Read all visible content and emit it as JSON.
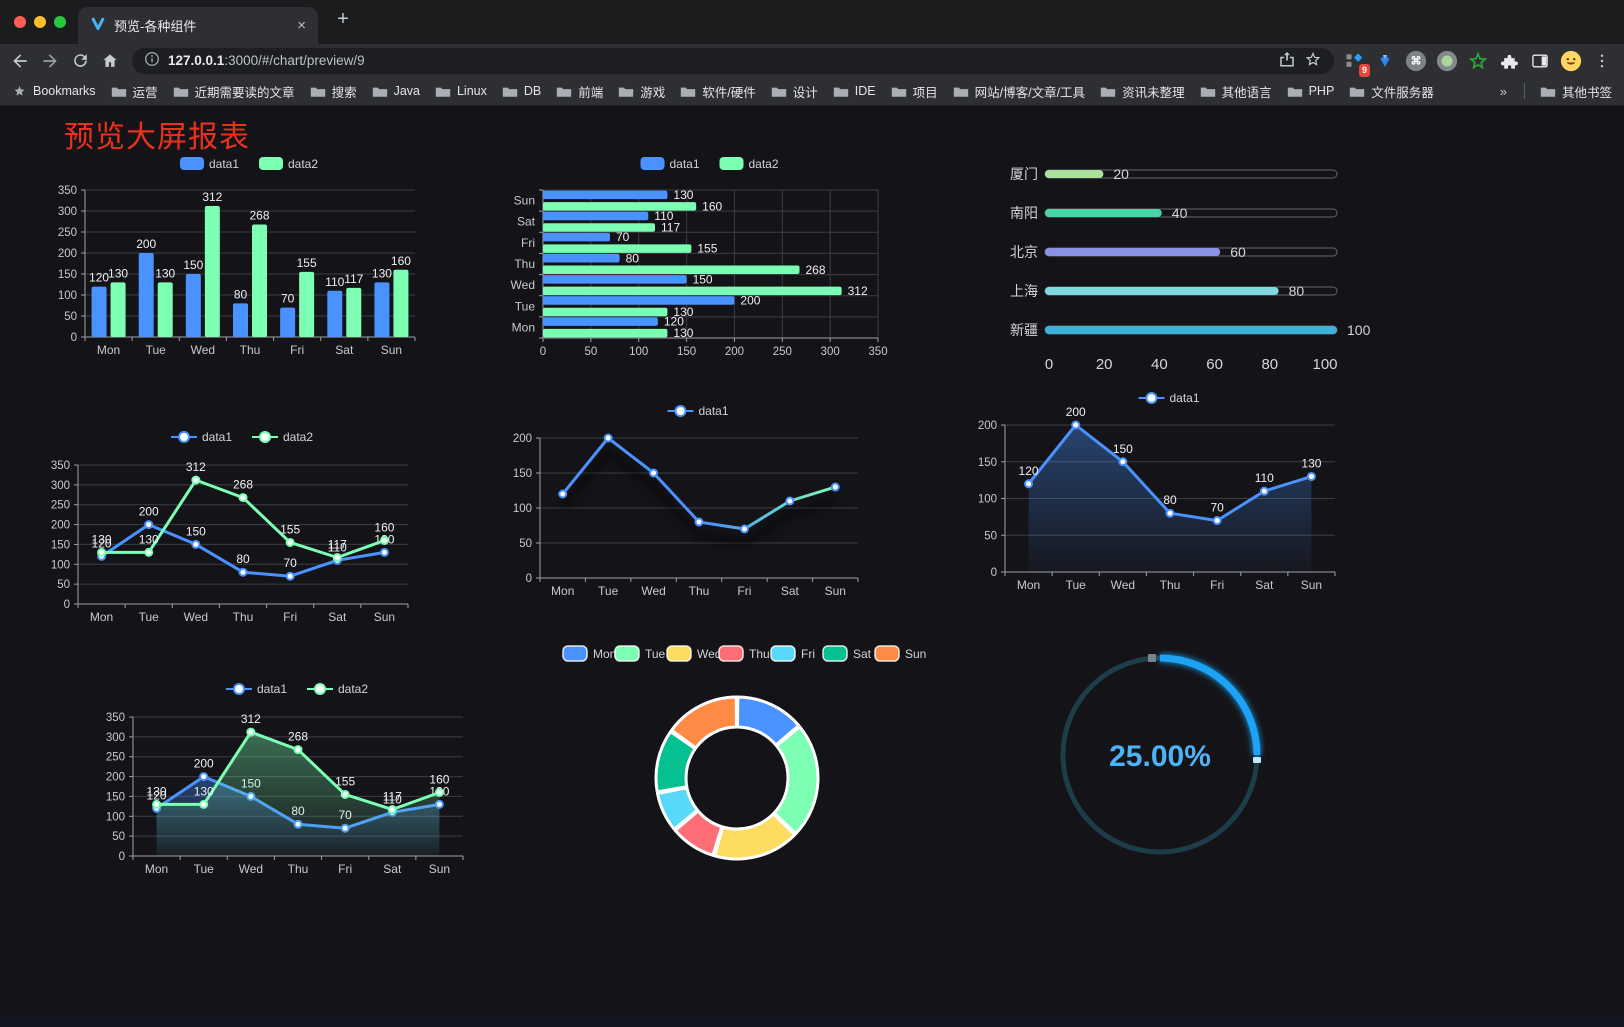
{
  "browser": {
    "traffic_lights": [
      "#ff5f57",
      "#febc2e",
      "#28c840"
    ],
    "tab_title": "预览-各种组件",
    "glyphs": {
      "tab_close": "×",
      "new_tab": "+",
      "overflow": "»",
      "command": "⌘"
    },
    "url_host": "127.0.0.1",
    "url_rest": ":3000/#/chart/preview/9",
    "extensions_badge": "9",
    "bookmarks_label": "Bookmarks",
    "bookmarks": [
      "运营",
      "近期需要读的文章",
      "搜索",
      "Java",
      "Linux",
      "DB",
      "前端",
      "游戏",
      "软件/硬件",
      "设计",
      "IDE",
      "项目",
      "网站/博客/文章/工具",
      "资讯未整理",
      "其他语言",
      "PHP",
      "文件服务器"
    ],
    "other_bookmarks": "其他书签",
    "icons": [
      "back-icon",
      "forward-icon",
      "reload-icon",
      "home-icon",
      "site-info-icon",
      "share-icon",
      "bookmark-star-icon",
      "extension-grid-icon",
      "gem-icon",
      "command-circle-icon",
      "record-circle-icon",
      "green-star-icon",
      "extensions-puzzle-icon",
      "side-panel-icon",
      "profile-avatar",
      "browser-menu-icon"
    ]
  },
  "page": {
    "title": "预览大屏报表",
    "title_color": "#e8321e",
    "background": "#141418"
  },
  "theme": {
    "axis_text": "#c8c9d0",
    "grid_line": "#3c3c46",
    "axis_line": "#9fa0a8",
    "value_label": "#f0f0f3",
    "legend_text": "#d2d3d9",
    "series_blue": "#4992ff",
    "series_green": "#7cffb2"
  },
  "chart_data": [
    {
      "id": "bar-grouped",
      "type": "bar",
      "categories": [
        "Mon",
        "Tue",
        "Wed",
        "Thu",
        "Fri",
        "Sat",
        "Sun"
      ],
      "series": [
        {
          "name": "data1",
          "color": "#4992ff",
          "values": [
            120,
            200,
            150,
            80,
            70,
            110,
            130
          ]
        },
        {
          "name": "data2",
          "color": "#7cffb2",
          "values": [
            130,
            130,
            312,
            268,
            155,
            117,
            160
          ]
        }
      ],
      "ylim": [
        0,
        350
      ],
      "ytick_step": 50,
      "legend_position": "top",
      "grid": true,
      "value_labels": true
    },
    {
      "id": "bar-horizontal",
      "type": "bar",
      "categories": [
        "Mon",
        "Tue",
        "Wed",
        "Thu",
        "Fri",
        "Sat",
        "Sun"
      ],
      "series": [
        {
          "name": "data1",
          "color": "#4992ff",
          "values": [
            120,
            200,
            150,
            80,
            70,
            110,
            130
          ]
        },
        {
          "name": "data2",
          "color": "#7cffb2",
          "values": [
            130,
            130,
            312,
            268,
            155,
            117,
            160
          ]
        }
      ],
      "xlim": [
        0,
        350
      ],
      "xtick_step": 50,
      "legend_position": "top",
      "grid": true,
      "value_labels": true
    },
    {
      "id": "progress-list",
      "type": "bar",
      "categories": [
        "厦门",
        "南阳",
        "北京",
        "上海",
        "新疆"
      ],
      "values": [
        20,
        40,
        60,
        80,
        100
      ],
      "colors": [
        "#abe29b",
        "#49d6a6",
        "#8a92e3",
        "#7fd8e2",
        "#3cb1d9"
      ],
      "xlim": [
        0,
        100
      ],
      "xticks": [
        0,
        20,
        40,
        60,
        80,
        100
      ]
    },
    {
      "id": "line-dual",
      "type": "line",
      "categories": [
        "Mon",
        "Tue",
        "Wed",
        "Thu",
        "Fri",
        "Sat",
        "Sun"
      ],
      "series": [
        {
          "name": "data1",
          "color": "#4992ff",
          "values": [
            120,
            200,
            150,
            80,
            70,
            110,
            130
          ]
        },
        {
          "name": "data2",
          "color": "#7cffb2",
          "values": [
            130,
            130,
            312,
            268,
            155,
            117,
            160
          ]
        }
      ],
      "ylim": [
        0,
        350
      ],
      "ytick_step": 50,
      "legend_position": "top",
      "value_labels": true
    },
    {
      "id": "line-gradient",
      "type": "line",
      "categories": [
        "Mon",
        "Tue",
        "Wed",
        "Thu",
        "Fri",
        "Sat",
        "Sun"
      ],
      "series": [
        {
          "name": "data1",
          "gradient": [
            "#4992ff",
            "#7cffb2"
          ],
          "values": [
            120,
            200,
            150,
            80,
            70,
            110,
            130
          ]
        }
      ],
      "ylim": [
        0,
        200
      ],
      "ytick_step": 50,
      "legend_position": "top",
      "value_labels": false
    },
    {
      "id": "area-single",
      "type": "area",
      "categories": [
        "Mon",
        "Tue",
        "Wed",
        "Thu",
        "Fri",
        "Sat",
        "Sun"
      ],
      "series": [
        {
          "name": "data1",
          "color": "#4992ff",
          "area": true,
          "values": [
            120,
            200,
            150,
            80,
            70,
            110,
            130
          ]
        }
      ],
      "ylim": [
        0,
        200
      ],
      "ytick_step": 50,
      "legend_position": "top",
      "value_labels": true
    },
    {
      "id": "area-dual",
      "type": "area",
      "categories": [
        "Mon",
        "Tue",
        "Wed",
        "Thu",
        "Fri",
        "Sat",
        "Sun"
      ],
      "series": [
        {
          "name": "data1",
          "color": "#4992ff",
          "area": true,
          "values": [
            120,
            200,
            150,
            80,
            70,
            110,
            130
          ]
        },
        {
          "name": "data2",
          "color": "#7cffb2",
          "area": true,
          "values": [
            130,
            130,
            312,
            268,
            155,
            117,
            160
          ]
        }
      ],
      "ylim": [
        0,
        350
      ],
      "ytick_step": 50,
      "legend_position": "top",
      "value_labels": true
    },
    {
      "id": "donut",
      "type": "pie",
      "labels": [
        "Mon",
        "Tue",
        "Wed",
        "Thu",
        "Fri",
        "Sat",
        "Sun"
      ],
      "values": [
        120,
        200,
        150,
        80,
        70,
        110,
        130
      ],
      "colors": [
        "#4992ff",
        "#7cffb2",
        "#fddd60",
        "#ff6e76",
        "#58d9f9",
        "#05c091",
        "#ff8a45"
      ],
      "inner_radius_pct": 62,
      "border_color": "#ffffff",
      "legend_position": "top"
    },
    {
      "id": "gauge",
      "type": "gauge",
      "value_pct": 25,
      "max": 100,
      "display": "25.00%",
      "progress_color": "#1aa3f5",
      "track_color": "#1d3e48",
      "text_color": "#4db3f7"
    }
  ]
}
